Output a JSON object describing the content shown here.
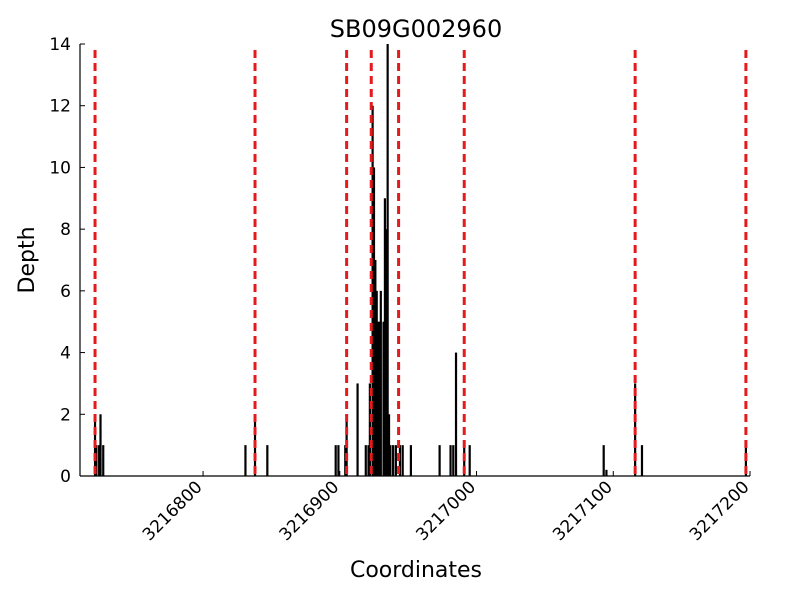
{
  "chart_data": {
    "type": "bar",
    "title": "SB09G002960",
    "xlabel": "Coordinates",
    "ylabel": "Depth",
    "xlim": [
      3216710,
      3217200
    ],
    "ylim": [
      0,
      14
    ],
    "grid": false,
    "yticks": [
      0,
      2,
      4,
      6,
      8,
      10,
      12,
      14
    ],
    "xticks": [
      3216800,
      3216900,
      3217000,
      3217100,
      3217200
    ],
    "vline_color": "#e41a1c",
    "bar_color": "#000000",
    "vlines": [
      3216721,
      3216838,
      3216905,
      3216923,
      3216943,
      3216991,
      3217116,
      3217197
    ],
    "x": [
      3216721,
      3216722,
      3216724,
      3216725,
      3216727,
      3216831,
      3216838,
      3216847,
      3216897,
      3216899,
      3216904,
      3216905,
      3216913,
      3216919,
      3216921,
      3216922,
      3216924,
      3216925,
      3216926,
      3216927,
      3216928,
      3216929,
      3216930,
      3216932,
      3216933,
      3216934,
      3216935,
      3216936,
      3216937,
      3216939,
      3216941,
      3216944,
      3216946,
      3216952,
      3216973,
      3216981,
      3216983,
      3216985,
      3216991,
      3216995,
      3217093,
      3217095,
      3217116,
      3217121,
      3217197
    ],
    "values": [
      2,
      1,
      1,
      2,
      1,
      1,
      2,
      1,
      1,
      1,
      1,
      2,
      3,
      1,
      1,
      3,
      12,
      10,
      7,
      6,
      5,
      5,
      6,
      5,
      9,
      8,
      14,
      2,
      1,
      1,
      1,
      1,
      1,
      1,
      1,
      1,
      1,
      4,
      1,
      1,
      1,
      0.2,
      3,
      1,
      1
    ]
  }
}
